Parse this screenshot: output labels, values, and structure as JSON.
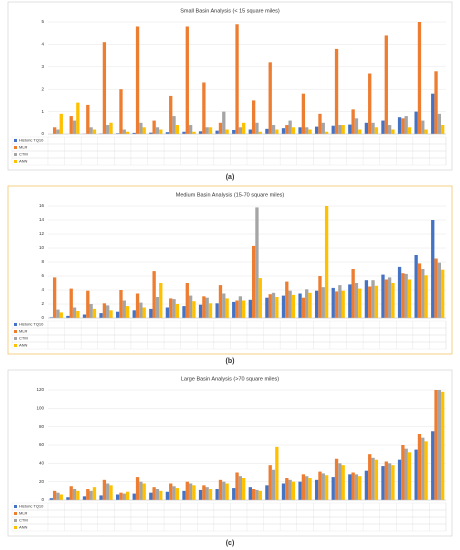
{
  "chart_data": [
    {
      "type": "bar",
      "title": "Small Basin Analysis (< 15 square miles)",
      "caption": "(a)",
      "categories": [
        null,
        null,
        null,
        null,
        null,
        null,
        null,
        null,
        null,
        null,
        null,
        null,
        null,
        null,
        null,
        null,
        null,
        null,
        null,
        null,
        null,
        null,
        null,
        null
      ],
      "series": [
        {
          "name": "Historic TQ10",
          "color": "#4472c4",
          "values": [
            0,
            0,
            0.01,
            0.02,
            0.03,
            0.05,
            0.06,
            0.08,
            0.1,
            0.12,
            0.15,
            0.18,
            0.2,
            0.23,
            0.26,
            0.3,
            0.33,
            0.37,
            0.42,
            0.5,
            0.6,
            0.75,
            1.0,
            1.8
          ]
        },
        {
          "name": "MLR",
          "color": "#ed7d31",
          "values": [
            0.3,
            0.8,
            1.3,
            4.1,
            2.0,
            4.8,
            0.6,
            1.7,
            4.8,
            2.3,
            0.5,
            4.9,
            1.5,
            3.2,
            0.4,
            1.8,
            0.9,
            3.8,
            1.1,
            2.7,
            4.4,
            0.7,
            5.0,
            2.8
          ]
        },
        {
          "name": "CTM",
          "color": "#a5a5a5",
          "values": [
            0.2,
            0.6,
            0.3,
            0.4,
            0.2,
            0.5,
            0.3,
            0.8,
            0.4,
            0.3,
            1.0,
            0.3,
            0.5,
            0.4,
            0.6,
            0.3,
            0.5,
            0.4,
            0.7,
            0.5,
            0.4,
            0.8,
            0.6,
            0.9
          ]
        },
        {
          "name": "ANN",
          "color": "#ffc000",
          "values": [
            0.9,
            1.4,
            0.2,
            0.5,
            0.1,
            0.3,
            0.2,
            0.4,
            0.1,
            0.3,
            0.2,
            0.5,
            0.1,
            0.2,
            0.3,
            0.2,
            0.1,
            0.4,
            0.2,
            0.3,
            0.2,
            0.3,
            0.2,
            0.4
          ]
        }
      ],
      "ylim": [
        0,
        5
      ],
      "yticks": [
        0,
        1,
        2,
        3,
        4,
        5
      ],
      "grid": true
    },
    {
      "type": "bar",
      "title": "Medium Basin Analysis (15-70 square miles)",
      "caption": "(b)",
      "categories": [
        null,
        null,
        null,
        null,
        null,
        null,
        null,
        null,
        null,
        null,
        null,
        null,
        null,
        null,
        null,
        null,
        null,
        null,
        null,
        null,
        null,
        null,
        null,
        null
      ],
      "series": [
        {
          "name": "Historic TQ10",
          "color": "#4472c4",
          "values": [
            0.1,
            0.3,
            0.5,
            0.7,
            0.9,
            1.1,
            1.3,
            1.5,
            1.7,
            1.9,
            2.1,
            2.3,
            2.6,
            2.9,
            3.2,
            3.5,
            3.9,
            4.3,
            4.8,
            5.4,
            6.2,
            7.3,
            9.0,
            14.0
          ]
        },
        {
          "name": "MLR",
          "color": "#ed7d31",
          "values": [
            5.8,
            4.2,
            3.9,
            2.1,
            4.0,
            3.5,
            6.7,
            2.8,
            5.0,
            3.1,
            4.7,
            2.5,
            10.3,
            3.4,
            5.2,
            2.9,
            6.0,
            3.8,
            7.0,
            4.5,
            5.5,
            6.4,
            7.8,
            8.5
          ]
        },
        {
          "name": "CTM",
          "color": "#a5a5a5",
          "values": [
            1.2,
            1.5,
            2.0,
            1.8,
            2.5,
            2.2,
            3.0,
            2.7,
            3.2,
            2.9,
            3.5,
            3.1,
            15.8,
            3.6,
            3.9,
            4.1,
            4.4,
            4.7,
            5.0,
            5.4,
            5.8,
            6.3,
            7.0,
            7.9
          ]
        },
        {
          "name": "ANN",
          "color": "#ffc000",
          "values": [
            0.8,
            1.0,
            1.3,
            1.1,
            1.7,
            1.5,
            5.0,
            2.0,
            2.4,
            2.1,
            2.8,
            2.5,
            5.7,
            3.0,
            3.3,
            3.6,
            16,
            3.9,
            4.2,
            4.6,
            5.0,
            5.5,
            6.1,
            6.9
          ]
        }
      ],
      "ylim": [
        0,
        16
      ],
      "yticks": [
        0,
        2,
        4,
        6,
        8,
        10,
        12,
        14,
        16
      ],
      "grid": true
    },
    {
      "type": "bar",
      "title": "Large Basin Analysis (>70 square miles)",
      "caption": "(c)",
      "categories": [
        null,
        null,
        null,
        null,
        null,
        null,
        null,
        null,
        null,
        null,
        null,
        null,
        null,
        null,
        null,
        null,
        null,
        null,
        null,
        null,
        null,
        null,
        null,
        null
      ],
      "series": [
        {
          "name": "Historic TQ10",
          "color": "#4472c4",
          "values": [
            2,
            3,
            4,
            5,
            6,
            7,
            8,
            9,
            10,
            11,
            12,
            13,
            14,
            16,
            18,
            20,
            22,
            25,
            28,
            32,
            37,
            44,
            55,
            75
          ]
        },
        {
          "name": "MLR",
          "color": "#ed7d31",
          "values": [
            10,
            15,
            12,
            22,
            8,
            25,
            14,
            18,
            20,
            16,
            22,
            30,
            12,
            38,
            24,
            28,
            31,
            45,
            30,
            50,
            42,
            60,
            72,
            120
          ]
        },
        {
          "name": "CTM",
          "color": "#a5a5a5",
          "values": [
            8,
            12,
            10,
            18,
            7,
            20,
            12,
            15,
            18,
            14,
            20,
            26,
            11,
            33,
            22,
            26,
            29,
            40,
            28,
            46,
            40,
            56,
            68,
            120
          ]
        },
        {
          "name": "ANN",
          "color": "#ffc000",
          "values": [
            6,
            10,
            14,
            16,
            9,
            18,
            10,
            13,
            16,
            12,
            18,
            24,
            10,
            58,
            20,
            24,
            27,
            38,
            26,
            44,
            38,
            52,
            64,
            118
          ]
        }
      ],
      "ylim": [
        0,
        120
      ],
      "yticks": [
        0,
        20,
        40,
        60,
        80,
        100,
        120
      ],
      "grid": true
    }
  ]
}
